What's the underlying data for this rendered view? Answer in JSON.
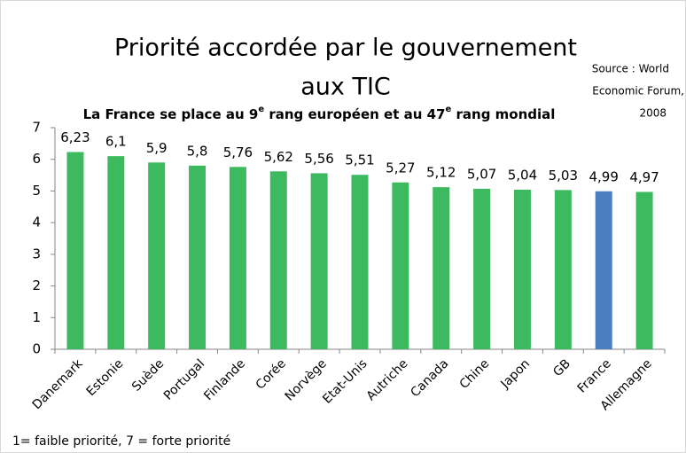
{
  "chart_data": {
    "type": "bar",
    "title": [
      "Priorité accordée par le gouvernement",
      "aux TIC"
    ],
    "subtitle": [
      "La France se place au 9",
      "e",
      " rang européen et au 47",
      "e",
      " rang mondial"
    ],
    "source": [
      "Source : World",
      "Economic Forum,",
      "2008"
    ],
    "footnote": "1= faible priorité, 7 = forte priorité",
    "categories": [
      "Danemark",
      "Estonie",
      "Suède",
      "Portugal",
      "Finlande",
      "Corée",
      "Norvège",
      "Etat-Unis",
      "Autriche",
      "Canada",
      "Chine",
      "Japon",
      "GB",
      "France",
      "Allemagne"
    ],
    "values": [
      6.23,
      6.1,
      5.9,
      5.8,
      5.76,
      5.62,
      5.56,
      5.51,
      5.27,
      5.12,
      5.07,
      5.04,
      5.03,
      4.99,
      4.97
    ],
    "value_labels": [
      "6,23",
      "6,1",
      "5,9",
      "5,8",
      "5,76",
      "5,62",
      "5,56",
      "5,51",
      "5,27",
      "5,12",
      "5,07",
      "5,04",
      "5,03",
      "4,99",
      "4,97"
    ],
    "colors": [
      "#3dba5f",
      "#3dba5f",
      "#3dba5f",
      "#3dba5f",
      "#3dba5f",
      "#3dba5f",
      "#3dba5f",
      "#3dba5f",
      "#3dba5f",
      "#3dba5f",
      "#3dba5f",
      "#3dba5f",
      "#3dba5f",
      "#4a7ec0",
      "#3dba5f"
    ],
    "ylim": [
      0,
      7
    ],
    "yticks": [
      0,
      1,
      2,
      3,
      4,
      5,
      6,
      7
    ],
    "grid": false
  }
}
